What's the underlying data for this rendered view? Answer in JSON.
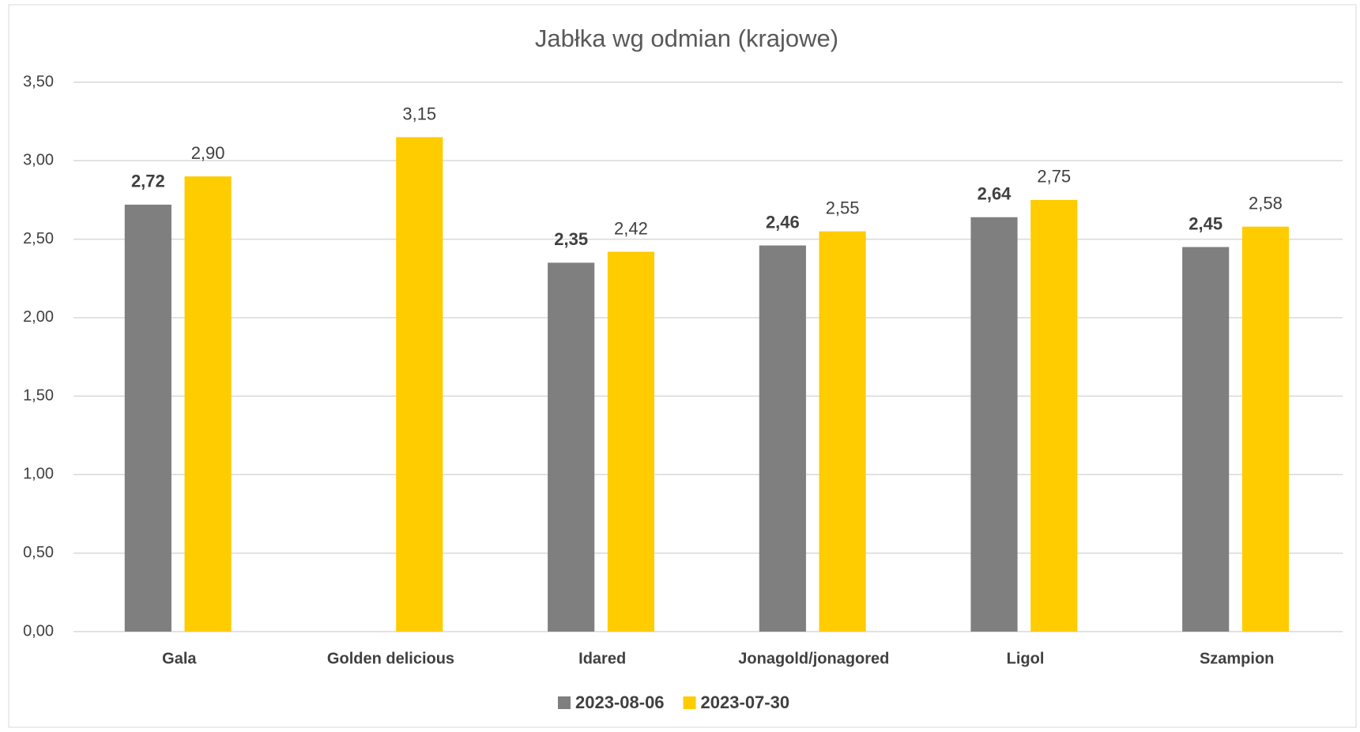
{
  "chart_data": {
    "type": "bar",
    "title": "Jabłka wg odmian (krajowe)",
    "categories": [
      "Gala",
      "Golden delicious",
      "Idared",
      "Jonagold/jonagored",
      "Ligol",
      "Szampion"
    ],
    "series": [
      {
        "name": "2023-08-06",
        "color": "#7f7f7f",
        "values": [
          2.72,
          null,
          2.35,
          2.46,
          2.64,
          2.45
        ],
        "value_labels": [
          "2,72",
          null,
          "2,35",
          "2,46",
          "2,64",
          "2,45"
        ]
      },
      {
        "name": "2023-07-30",
        "color": "#ffcc00",
        "values": [
          2.9,
          3.15,
          2.42,
          2.55,
          2.75,
          2.58
        ],
        "value_labels": [
          "2,90",
          "3,15",
          "2,42",
          "2,55",
          "2,75",
          "2,58"
        ]
      }
    ],
    "ylim": [
      0,
      3.5
    ],
    "yticks": [
      {
        "value": 0,
        "label": "0,00"
      },
      {
        "value": 0.5,
        "label": "0,50"
      },
      {
        "value": 1,
        "label": "1,00"
      },
      {
        "value": 1.5,
        "label": "1,50"
      },
      {
        "value": 2,
        "label": "2,00"
      },
      {
        "value": 2.5,
        "label": "2,50"
      },
      {
        "value": 3,
        "label": "3,00"
      },
      {
        "value": 3.5,
        "label": "3,50"
      }
    ],
    "grid": true,
    "legend": "bottom"
  }
}
